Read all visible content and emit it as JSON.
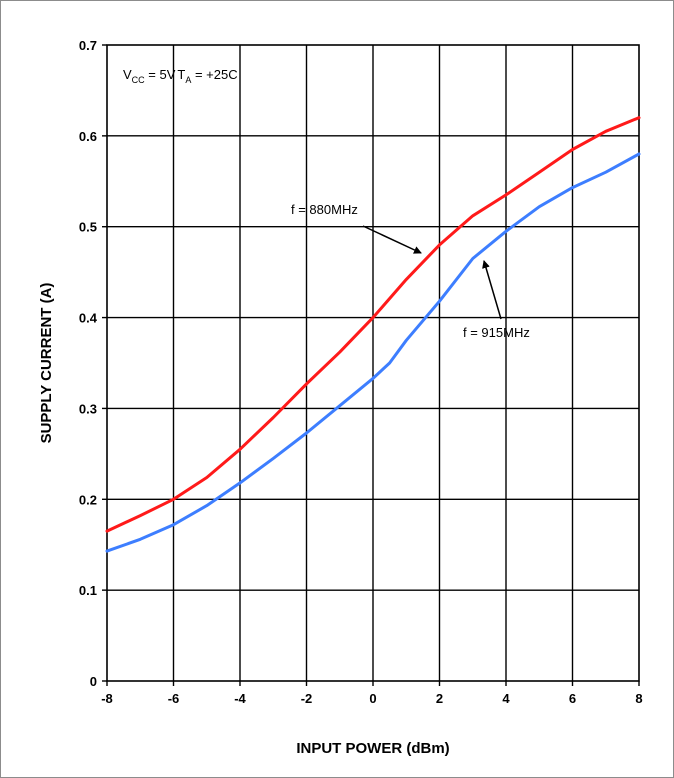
{
  "chart_data": {
    "type": "line",
    "xlabel": "INPUT POWER (dBm)",
    "ylabel": "SUPPLY CURRENT (A)",
    "xlim": [
      -8,
      8
    ],
    "ylim": [
      0,
      0.7
    ],
    "x_ticks": [
      "-8",
      "-6",
      "-4",
      "-2",
      "0",
      "2",
      "4",
      "6",
      "8"
    ],
    "y_ticks": [
      "0",
      "0.1",
      "0.2",
      "0.3",
      "0.4",
      "0.5",
      "0.6",
      "0.7"
    ],
    "grid": true,
    "conditions": {
      "vcc_main": "V",
      "vcc_sub": "CC",
      "vcc_value": " = 5V",
      "ta_main": "T",
      "ta_sub": "A",
      "ta_value": " = +25C"
    },
    "series": [
      {
        "name": "f = 880MHz",
        "color": "#ff1a1a",
        "x": [
          -8,
          -7,
          -6,
          -5,
          -4,
          -3,
          -2,
          -1,
          0,
          1,
          2,
          3,
          4,
          5,
          6,
          7,
          8
        ],
        "y": [
          0.165,
          0.182,
          0.2,
          0.224,
          0.255,
          0.29,
          0.327,
          0.362,
          0.4,
          0.442,
          0.48,
          0.512,
          0.535,
          0.56,
          0.585,
          0.605,
          0.62
        ]
      },
      {
        "name": "f = 915MHz",
        "color": "#3d7eff",
        "x": [
          -8,
          -7,
          -6,
          -5,
          -4,
          -3,
          -2,
          -1,
          0,
          0.5,
          1,
          2,
          3,
          4,
          5,
          6,
          7,
          8
        ],
        "y": [
          0.143,
          0.156,
          0.172,
          0.193,
          0.218,
          0.245,
          0.273,
          0.303,
          0.333,
          0.35,
          0.375,
          0.418,
          0.465,
          0.495,
          0.522,
          0.543,
          0.56,
          0.58
        ]
      }
    ]
  }
}
